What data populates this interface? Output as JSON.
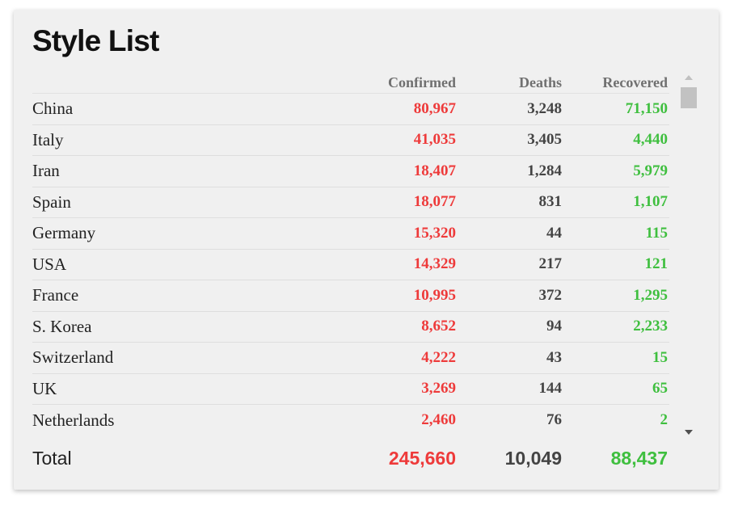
{
  "title": "Style List",
  "columns": {
    "confirmed": "Confirmed",
    "deaths": "Deaths",
    "recovered": "Recovered"
  },
  "rows": [
    {
      "country": "China",
      "confirmed": "80,967",
      "deaths": "3,248",
      "recovered": "71,150"
    },
    {
      "country": "Italy",
      "confirmed": "41,035",
      "deaths": "3,405",
      "recovered": "4,440"
    },
    {
      "country": "Iran",
      "confirmed": "18,407",
      "deaths": "1,284",
      "recovered": "5,979"
    },
    {
      "country": "Spain",
      "confirmed": "18,077",
      "deaths": "831",
      "recovered": "1,107"
    },
    {
      "country": "Germany",
      "confirmed": "15,320",
      "deaths": "44",
      "recovered": "115"
    },
    {
      "country": "USA",
      "confirmed": "14,329",
      "deaths": "217",
      "recovered": "121"
    },
    {
      "country": "France",
      "confirmed": "10,995",
      "deaths": "372",
      "recovered": "1,295"
    },
    {
      "country": "S. Korea",
      "confirmed": "8,652",
      "deaths": "94",
      "recovered": "2,233"
    },
    {
      "country": "Switzerland",
      "confirmed": "4,222",
      "deaths": "43",
      "recovered": "15"
    },
    {
      "country": "UK",
      "confirmed": "3,269",
      "deaths": "144",
      "recovered": "65"
    },
    {
      "country": "Netherlands",
      "confirmed": "2,460",
      "deaths": "76",
      "recovered": "2"
    }
  ],
  "total": {
    "label": "Total",
    "confirmed": "245,660",
    "deaths": "10,049",
    "recovered": "88,437"
  },
  "colors": {
    "confirmed": "#ee3a3a",
    "deaths": "#444444",
    "recovered": "#3fbf3f",
    "card_background": "#f0f0f0"
  },
  "icons": {
    "scroll_up": "triangle-up-icon",
    "scroll_down": "triangle-down-icon"
  }
}
